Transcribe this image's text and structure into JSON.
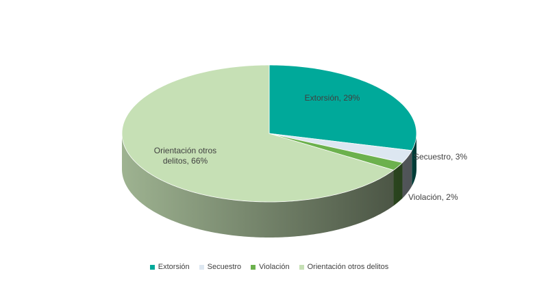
{
  "chart_data": {
    "type": "pie",
    "categories": [
      "Extorsión",
      "Secuestro",
      "Violación",
      "Orientación otros delitos"
    ],
    "values": [
      29,
      3,
      2,
      66
    ],
    "value_labels": [
      "Extorsión, 29%",
      "Secuestro, 3%",
      "Violación, 2%",
      "Orientación otros delitos, 66%"
    ],
    "colors": [
      "#00a99a",
      "#dde7f1",
      "#6cb14d",
      "#c6e0b5"
    ],
    "legend": "bottom"
  }
}
